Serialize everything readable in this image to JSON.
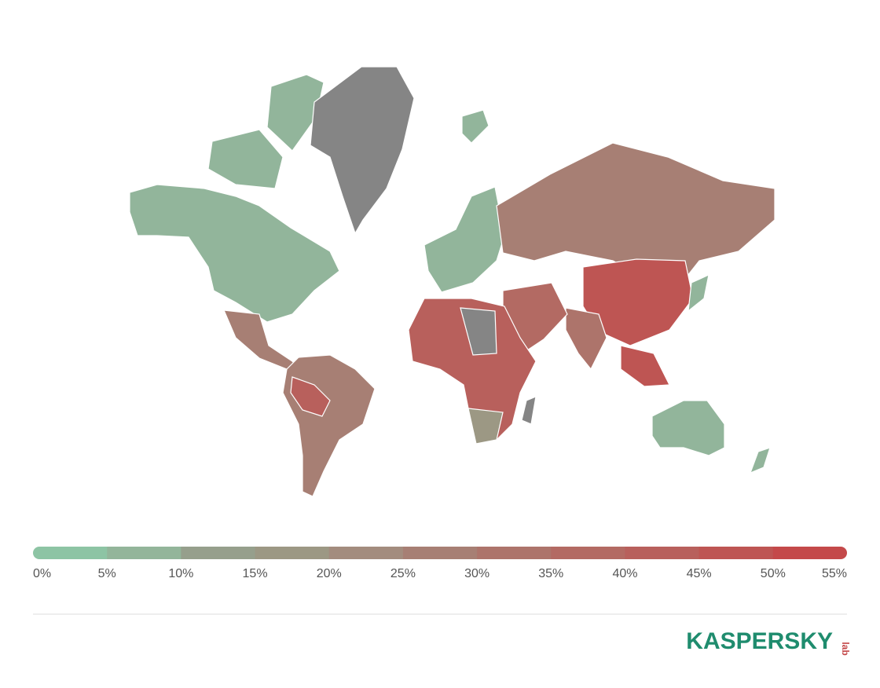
{
  "legend": {
    "ticks": [
      {
        "value": 0,
        "label": "0%"
      },
      {
        "value": 5,
        "label": "5%"
      },
      {
        "value": 10,
        "label": "10%"
      },
      {
        "value": 15,
        "label": "15%"
      },
      {
        "value": 20,
        "label": "20%"
      },
      {
        "value": 25,
        "label": "25%"
      },
      {
        "value": 30,
        "label": "30%"
      },
      {
        "value": 35,
        "label": "35%"
      },
      {
        "value": 40,
        "label": "40%"
      },
      {
        "value": 45,
        "label": "45%"
      },
      {
        "value": 50,
        "label": "50%"
      },
      {
        "value": 55,
        "label": "55%"
      }
    ],
    "colors": [
      "#8dc4a4",
      "#93b59a",
      "#969f8c",
      "#9c9884",
      "#a38c7e",
      "#a77f74",
      "#ad746b",
      "#b36a63",
      "#b8605c",
      "#be5553",
      "#c4494a"
    ]
  },
  "logo": {
    "text": "KASPERSKY",
    "suffix": "lab"
  }
}
